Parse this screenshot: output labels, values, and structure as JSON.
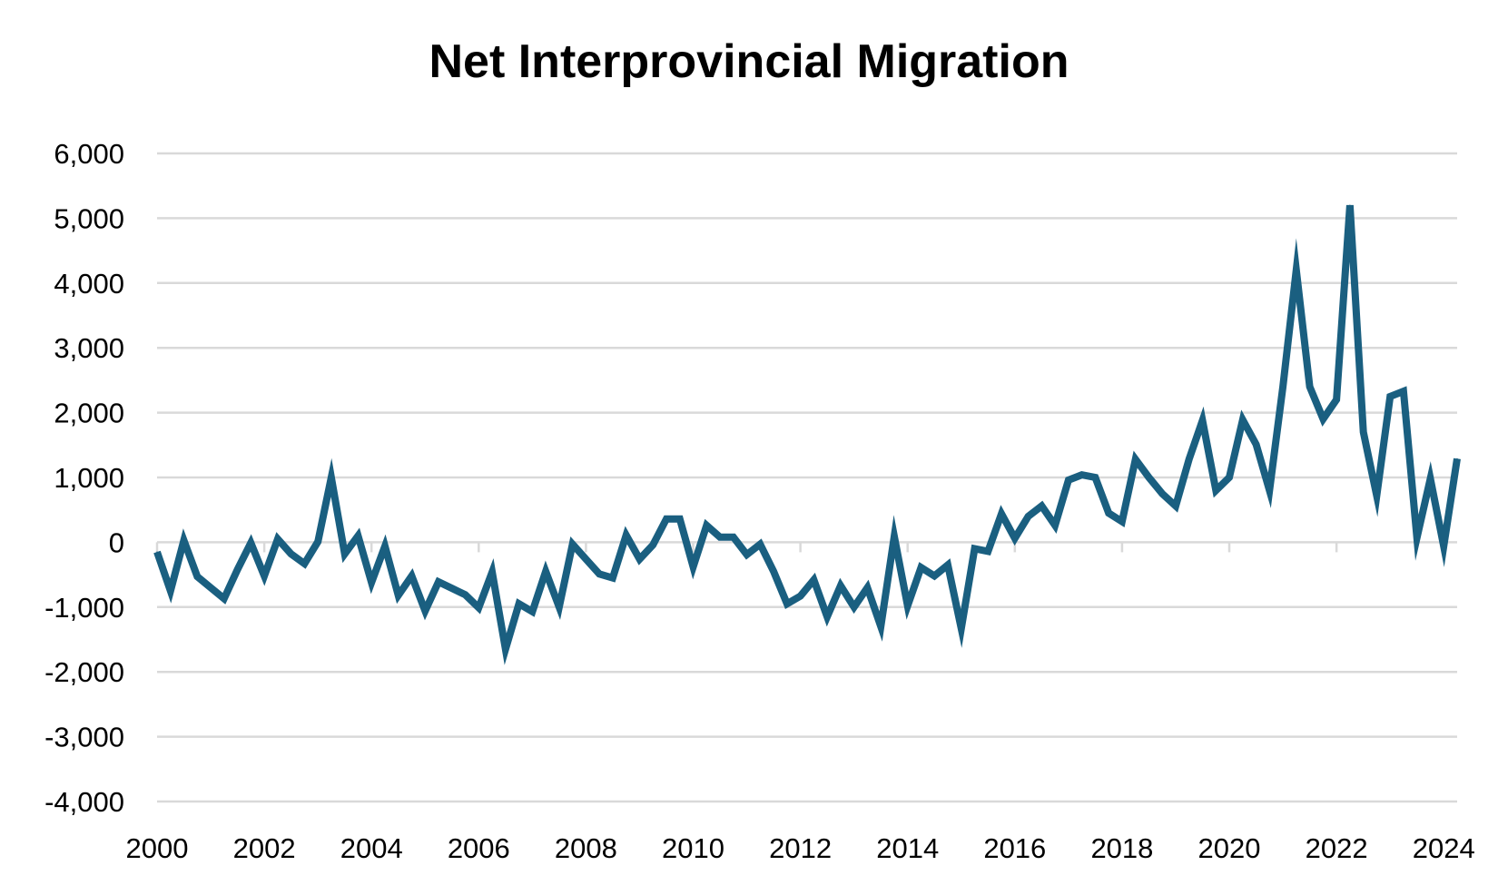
{
  "chart_data": {
    "type": "line",
    "title": "Net Interprovincial Migration",
    "xlabel": "",
    "ylabel": "",
    "xlim": [
      2000,
      2024.25
    ],
    "ylim": [
      -4000,
      6000
    ],
    "y_ticks": [
      -4000,
      -3000,
      -2000,
      -1000,
      0,
      1000,
      2000,
      3000,
      4000,
      5000,
      6000
    ],
    "y_tick_labels": [
      "-4,000",
      "-3,000",
      "-2,000",
      "-1,000",
      "0",
      "1,000",
      "2,000",
      "3,000",
      "4,000",
      "5,000",
      "6,000"
    ],
    "x_ticks": [
      2000,
      2002,
      2004,
      2006,
      2008,
      2010,
      2012,
      2014,
      2016,
      2018,
      2020,
      2022,
      2024
    ],
    "x_tick_labels": [
      "2000",
      "2002",
      "2004",
      "2006",
      "2008",
      "2010",
      "2012",
      "2014",
      "2016",
      "2018",
      "2020",
      "2022",
      "2024"
    ],
    "grid": true,
    "line_color": "#1a5f80",
    "series": [
      {
        "name": "",
        "x": [
          2000,
          2000.25,
          2000.5,
          2000.75,
          2001,
          2001.25,
          2001.5,
          2001.75,
          2002,
          2002.25,
          2002.5,
          2002.75,
          2003,
          2003.25,
          2003.5,
          2003.75,
          2004,
          2004.25,
          2004.5,
          2004.75,
          2005,
          2005.25,
          2005.5,
          2005.75,
          2006,
          2006.25,
          2006.5,
          2006.75,
          2007,
          2007.25,
          2007.5,
          2007.75,
          2008,
          2008.25,
          2008.5,
          2008.75,
          2009,
          2009.25,
          2009.5,
          2009.75,
          2010,
          2010.25,
          2010.5,
          2010.75,
          2011,
          2011.25,
          2011.5,
          2011.75,
          2012,
          2012.25,
          2012.5,
          2012.75,
          2013,
          2013.25,
          2013.5,
          2013.75,
          2014,
          2014.25,
          2014.5,
          2014.75,
          2015,
          2015.25,
          2015.5,
          2015.75,
          2016,
          2016.25,
          2016.5,
          2016.75,
          2017,
          2017.25,
          2017.5,
          2017.75,
          2018,
          2018.25,
          2018.5,
          2018.75,
          2019,
          2019.25,
          2019.5,
          2019.75,
          2020,
          2020.25,
          2020.5,
          2020.75,
          2021,
          2021.25,
          2021.5,
          2021.75,
          2022,
          2022.25,
          2022.5,
          2022.75,
          2023,
          2023.25,
          2023.5,
          2023.75,
          2024,
          2024.25
        ],
        "values": [
          -150,
          -750,
          30,
          -530,
          -700,
          -870,
          -420,
          -10,
          -520,
          50,
          -180,
          -330,
          10,
          1000,
          -180,
          100,
          -620,
          -60,
          -820,
          -520,
          -1060,
          -610,
          -710,
          -810,
          -1010,
          -460,
          -1650,
          -950,
          -1070,
          -450,
          -1000,
          -30,
          -260,
          -490,
          -550,
          110,
          -260,
          -40,
          360,
          360,
          -380,
          260,
          80,
          80,
          -190,
          -30,
          -450,
          -950,
          -830,
          -580,
          -1150,
          -670,
          -1000,
          -700,
          -1300,
          90,
          -980,
          -390,
          -520,
          -350,
          -1330,
          -100,
          -140,
          440,
          60,
          400,
          560,
          260,
          960,
          1040,
          1000,
          450,
          320,
          1280,
          1000,
          750,
          560,
          1280,
          1880,
          800,
          1000,
          1890,
          1510,
          800,
          2400,
          4200,
          2400,
          1900,
          2200,
          5200,
          1700,
          720,
          2250,
          2330,
          70,
          980,
          -60,
          1290
        ]
      }
    ]
  }
}
